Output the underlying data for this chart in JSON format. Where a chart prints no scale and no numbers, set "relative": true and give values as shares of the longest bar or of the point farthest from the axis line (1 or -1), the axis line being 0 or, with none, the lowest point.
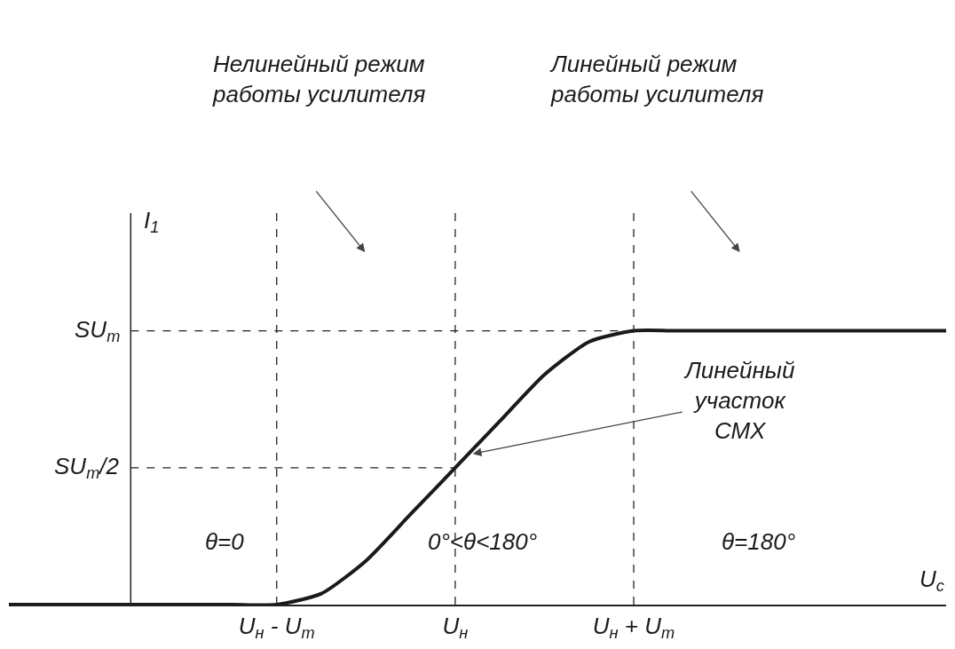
{
  "chart_data": {
    "type": "line",
    "relative": true,
    "xlabel": "U$_{с}$",
    "ylabel": "I$_{1}$",
    "categories": [
      null,
      null,
      null,
      null,
      null,
      null,
      "U$_{н}$ - U$_{m}$",
      null,
      null,
      null,
      "U$_{н}$",
      null,
      null,
      null,
      "U$_{н}$ + U$_{m}$",
      null,
      null,
      null,
      null,
      null,
      null,
      null
    ],
    "series": [
      {
        "color": "#1a1a1a",
        "values": [
          0,
          0,
          0,
          0,
          0,
          0,
          0,
          0.04,
          0.16,
          0.33,
          0.5,
          0.67,
          0.84,
          0.96,
          1,
          1,
          1,
          1,
          1,
          1,
          1,
          1
        ]
      }
    ],
    "grid": false,
    "marker": "none",
    "line_style": "solid",
    "ref_lines": [
      {
        "axis": "x",
        "value": "U$_{н}$ - U$_{m}$",
        "line_style": "dashed"
      },
      {
        "axis": "x",
        "value": "U$_{н}$",
        "line_style": "dashed"
      },
      {
        "axis": "x",
        "value": "U$_{н}$ + U$_{m}$",
        "line_style": "dashed"
      },
      {
        "axis": "y",
        "value": 1,
        "label": "SU$_{m}$",
        "line_style": "dashed"
      },
      {
        "axis": "y",
        "value": 0.5,
        "label": "SU$_{m}$/2",
        "line_style": "dashed"
      }
    ],
    "annotations": [
      "Нелинейный режим работы усилителя",
      "Линейный режим работы усилителя",
      "Линейный участок СМХ",
      "θ=0",
      "0°<θ<180°",
      "θ=180°"
    ]
  }
}
